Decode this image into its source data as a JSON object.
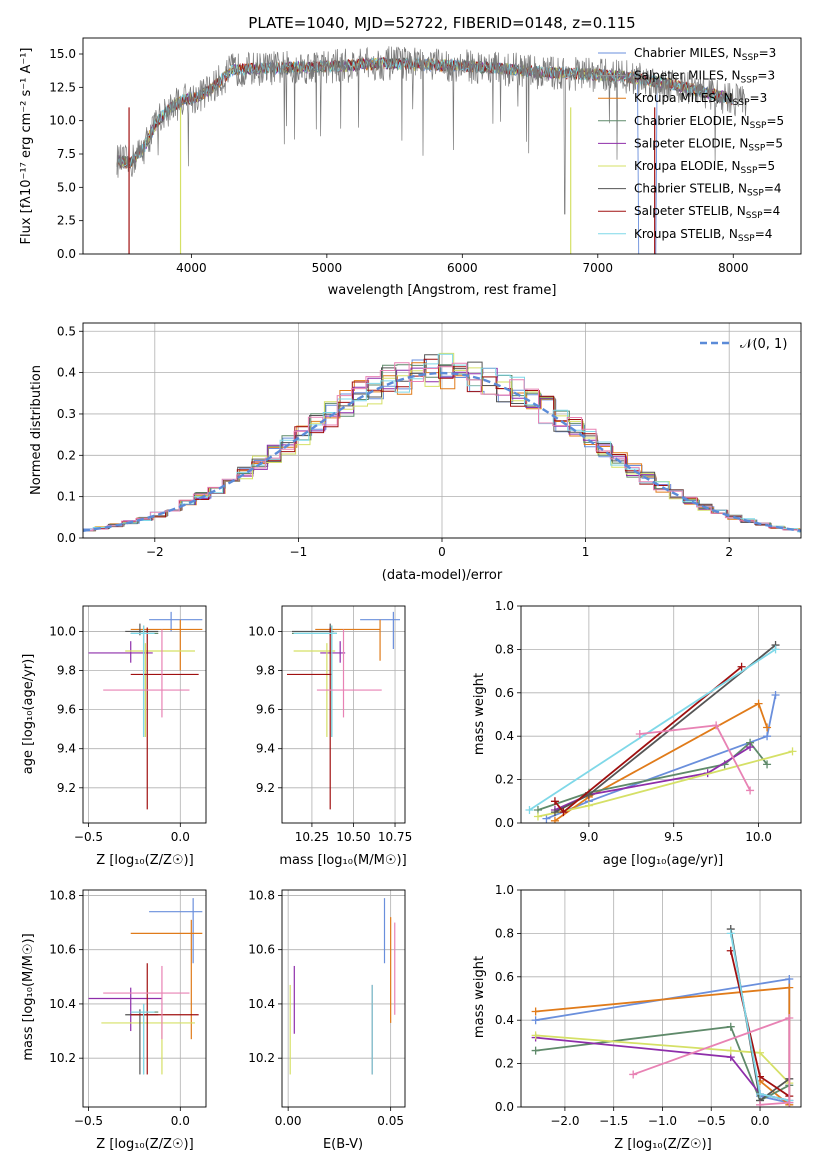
{
  "title": "PLATE=1040, MJD=52722, FIBERID=0148, z=0.115",
  "colors": {
    "Chabrier MILES": "#6a8fdc",
    "Salpeter MILES": "#9a9a9a",
    "Kroupa MILES": "#e07b1a",
    "Chabrier ELODIE": "#5f8a6a",
    "Salpeter ELODIE": "#8e2eaa",
    "Kroupa ELODIE": "#d5e066",
    "Chabrier STELIB": "#555555",
    "Salpeter STELIB": "#a01010",
    "Kroupa STELIB": "#7fd8e8",
    "extra_pink": "#e882b4",
    "normal_curve": "#5b8bd8"
  },
  "chart_data": [
    {
      "type": "line",
      "name": "spectrum",
      "xlabel": "wavelength [Angstrom, rest frame]",
      "ylabel": "Flux [fλ10⁻¹⁷ erg cm⁻² s⁻¹ A⁻¹]",
      "xlim": [
        3200,
        8500
      ],
      "ylim": [
        0,
        16.2
      ],
      "xticks": [
        4000,
        5000,
        6000,
        7000,
        8000
      ],
      "yticks": [
        "0.0",
        "2.5",
        "5.0",
        "7.5",
        "10.0",
        "12.5",
        "15.0"
      ],
      "legend_position": "right",
      "legend": [
        {
          "label": "Chabrier MILES, N",
          "sub": "SSP",
          "suffix": "=3",
          "color": "#6a8fdc"
        },
        {
          "label": "Salpeter MILES, N",
          "sub": "SSP",
          "suffix": "=3",
          "color": "#9a9a9a"
        },
        {
          "label": "Kroupa MILES, N",
          "sub": "SSP",
          "suffix": "=3",
          "color": "#e07b1a"
        },
        {
          "label": "Chabrier ELODIE, N",
          "sub": "SSP",
          "suffix": "=5",
          "color": "#5f8a6a"
        },
        {
          "label": "Salpeter ELODIE, N",
          "sub": "SSP",
          "suffix": "=5",
          "color": "#8e2eaa"
        },
        {
          "label": "Kroupa ELODIE, N",
          "sub": "SSP",
          "suffix": "=5",
          "color": "#d5e066"
        },
        {
          "label": "Chabrier STELIB, N",
          "sub": "SSP",
          "suffix": "=4",
          "color": "#555555"
        },
        {
          "label": "Salpeter STELIB, N",
          "sub": "SSP",
          "suffix": "=4",
          "color": "#a01010"
        },
        {
          "label": "Kroupa STELIB, N",
          "sub": "SSP",
          "suffix": "=4",
          "color": "#7fd8e8"
        }
      ],
      "continuum": [
        [
          3450,
          7.0
        ],
        [
          3550,
          6.8
        ],
        [
          3650,
          8.0
        ],
        [
          3750,
          10.0
        ],
        [
          3850,
          11.0
        ],
        [
          3950,
          11.6
        ],
        [
          4050,
          11.8
        ],
        [
          4150,
          12.4
        ],
        [
          4300,
          13.8
        ],
        [
          4500,
          13.9
        ],
        [
          4800,
          14.0
        ],
        [
          5100,
          14.1
        ],
        [
          5400,
          14.3
        ],
        [
          5700,
          14.2
        ],
        [
          6000,
          14.1
        ],
        [
          6300,
          13.9
        ],
        [
          6600,
          13.6
        ],
        [
          6900,
          13.5
        ],
        [
          7200,
          13.3
        ],
        [
          7500,
          12.8
        ],
        [
          7800,
          12.1
        ],
        [
          8000,
          11.6
        ]
      ]
    },
    {
      "type": "line",
      "name": "residual-histogram",
      "xlabel": "(data-model)/error",
      "ylabel": "Normed distribution",
      "xlim": [
        -2.5,
        2.5
      ],
      "ylim": [
        0,
        0.52
      ],
      "xticks": [
        "−2",
        "−1",
        "0",
        "1",
        "2"
      ],
      "yticks": [
        "0.0",
        "0.1",
        "0.2",
        "0.3",
        "0.4",
        "0.5"
      ],
      "legend_position": "top-right",
      "legend": [
        {
          "label": "𝒩(0, 1)",
          "color": "#5b8bd8",
          "dashed": true
        }
      ]
    },
    {
      "type": "scatter",
      "name": "age-vs-Z",
      "xlabel": "Z [log₁₀(Z/Z☉)]",
      "ylabel": "age  [log₁₀(age/yr)]",
      "xlim": [
        -0.53,
        0.14
      ],
      "ylim": [
        9.02,
        10.13
      ],
      "xticks": [
        "−0.5",
        "0.0"
      ],
      "yticks": [
        "9.2",
        "9.4",
        "9.6",
        "9.8",
        "10.0"
      ],
      "points": [
        {
          "c": "#6a8fdc",
          "x": -0.05,
          "y": 10.06,
          "ex": [
            -0.17,
            0.12
          ],
          "ey": [
            10.0,
            10.1
          ]
        },
        {
          "c": "#e07b1a",
          "x": 0.0,
          "y": 10.01,
          "ex": [
            -0.27,
            0.12
          ],
          "ey": [
            9.8,
            10.06
          ]
        },
        {
          "c": "#5f8a6a",
          "x": -0.2,
          "y": 9.99,
          "ex": [
            -0.27,
            -0.12
          ],
          "ey": [
            9.46,
            10.03
          ]
        },
        {
          "c": "#8e2eaa",
          "x": -0.27,
          "y": 9.89,
          "ex": [
            -0.5,
            -0.15
          ],
          "ey": [
            9.84,
            9.95
          ]
        },
        {
          "c": "#d5e066",
          "x": -0.19,
          "y": 9.9,
          "ex": [
            -0.3,
            0.08
          ],
          "ey": [
            9.46,
            9.94
          ]
        },
        {
          "c": "#555555",
          "x": -0.22,
          "y": 10.0,
          "ex": [
            -0.3,
            -0.12
          ],
          "ey": [
            9.98,
            10.04
          ]
        },
        {
          "c": "#a01010",
          "x": -0.18,
          "y": 9.78,
          "ex": [
            -0.27,
            0.1
          ],
          "ey": [
            9.09,
            10.02
          ]
        },
        {
          "c": "#7fd8e8",
          "x": -0.2,
          "y": 9.99,
          "ex": [
            -0.27,
            -0.14
          ],
          "ey": [
            9.46,
            10.03
          ]
        },
        {
          "c": "#e882b4",
          "x": -0.1,
          "y": 9.7,
          "ex": [
            -0.42,
            0.05
          ],
          "ey": [
            9.56,
            10.01
          ]
        }
      ]
    },
    {
      "type": "scatter",
      "name": "age-vs-mass",
      "xlabel": "mass [log₁₀(M/M☉)]",
      "ylabel": "",
      "xlim": [
        10.07,
        10.81
      ],
      "ylim": [
        9.02,
        10.13
      ],
      "xticks": [
        "10.25",
        "10.50",
        "10.75"
      ],
      "yticks": [
        "9.2",
        "9.4",
        "9.6",
        "9.8",
        "10.0"
      ],
      "points": [
        {
          "c": "#6a8fdc",
          "x": 10.74,
          "y": 10.06,
          "ex": [
            10.54,
            10.78
          ],
          "ey": [
            9.91,
            10.1
          ]
        },
        {
          "c": "#e07b1a",
          "x": 10.66,
          "y": 10.01,
          "ex": [
            10.27,
            10.66
          ],
          "ey": [
            9.85,
            10.06
          ]
        },
        {
          "c": "#5f8a6a",
          "x": 10.37,
          "y": 9.99,
          "ex": [
            10.13,
            10.4
          ],
          "ey": [
            9.46,
            10.03
          ]
        },
        {
          "c": "#8e2eaa",
          "x": 10.42,
          "y": 9.89,
          "ex": [
            10.3,
            10.45
          ],
          "ey": [
            9.84,
            9.95
          ]
        },
        {
          "c": "#d5e066",
          "x": 10.34,
          "y": 9.9,
          "ex": [
            10.14,
            10.39
          ],
          "ey": [
            9.46,
            9.94
          ]
        },
        {
          "c": "#555555",
          "x": 10.36,
          "y": 10.0,
          "ex": [
            10.13,
            10.38
          ],
          "ey": [
            9.98,
            10.04
          ]
        },
        {
          "c": "#a01010",
          "x": 10.36,
          "y": 9.78,
          "ex": [
            10.1,
            10.37
          ],
          "ey": [
            9.09,
            10.02
          ]
        },
        {
          "c": "#7fd8e8",
          "x": 10.37,
          "y": 9.99,
          "ex": [
            10.14,
            10.4
          ],
          "ey": [
            9.46,
            10.03
          ]
        },
        {
          "c": "#e882b4",
          "x": 10.44,
          "y": 9.7,
          "ex": [
            10.28,
            10.67
          ],
          "ey": [
            9.56,
            10.01
          ]
        }
      ]
    },
    {
      "type": "line",
      "name": "weight-vs-age",
      "xlabel": "age  [log₁₀(age/yr)]",
      "ylabel": "mass weight",
      "xlim": [
        8.6,
        10.25
      ],
      "ylim": [
        0,
        1
      ],
      "xticks": [
        "9.0",
        "9.5",
        "10.0"
      ],
      "yticks": [
        "0.0",
        "0.2",
        "0.4",
        "0.6",
        "0.8",
        "1.0"
      ],
      "series": [
        {
          "c": "#6a8fdc",
          "pts": [
            [
              8.75,
              0.02
            ],
            [
              9.0,
              0.1
            ],
            [
              10.05,
              0.4
            ],
            [
              10.1,
              0.59
            ]
          ]
        },
        {
          "c": "#e07b1a",
          "pts": [
            [
              8.8,
              0.01
            ],
            [
              9.0,
              0.12
            ],
            [
              10.0,
              0.55
            ],
            [
              10.05,
              0.44
            ]
          ]
        },
        {
          "c": "#5f8a6a",
          "pts": [
            [
              8.7,
              0.06
            ],
            [
              9.0,
              0.14
            ],
            [
              9.8,
              0.27
            ],
            [
              9.95,
              0.37
            ],
            [
              10.05,
              0.27
            ]
          ]
        },
        {
          "c": "#8e2eaa",
          "pts": [
            [
              8.8,
              0.06
            ],
            [
              9.0,
              0.13
            ],
            [
              9.7,
              0.23
            ],
            [
              9.95,
              0.35
            ]
          ]
        },
        {
          "c": "#d5e066",
          "pts": [
            [
              8.7,
              0.03
            ],
            [
              9.0,
              0.08
            ],
            [
              10.2,
              0.33
            ]
          ]
        },
        {
          "c": "#555555",
          "pts": [
            [
              8.8,
              0.05
            ],
            [
              9.0,
              0.13
            ],
            [
              10.1,
              0.82
            ]
          ]
        },
        {
          "c": "#a01010",
          "pts": [
            [
              8.8,
              0.1
            ],
            [
              8.85,
              0.05
            ],
            [
              9.9,
              0.72
            ]
          ]
        },
        {
          "c": "#7fd8e8",
          "pts": [
            [
              8.65,
              0.06
            ],
            [
              10.1,
              0.8
            ]
          ]
        },
        {
          "c": "#e882b4",
          "pts": [
            [
              9.3,
              0.41
            ],
            [
              9.75,
              0.45
            ],
            [
              9.95,
              0.15
            ]
          ]
        }
      ]
    },
    {
      "type": "scatter",
      "name": "mass-vs-Z",
      "xlabel": "Z [log₁₀(Z/Z☉)]",
      "ylabel": "mass [log₁₀(M/M☉)]",
      "xlim": [
        -0.53,
        0.14
      ],
      "ylim": [
        10.02,
        10.82
      ],
      "xticks": [
        "−0.5",
        "0.0"
      ],
      "yticks": [
        "10.2",
        "10.4",
        "10.6",
        "10.8"
      ],
      "points": [
        {
          "c": "#6a8fdc",
          "x": 0.07,
          "y": 10.74,
          "ex": [
            -0.17,
            0.12
          ],
          "ey": [
            10.55,
            10.79
          ]
        },
        {
          "c": "#e07b1a",
          "x": 0.06,
          "y": 10.66,
          "ex": [
            -0.27,
            0.12
          ],
          "ey": [
            10.27,
            10.71
          ]
        },
        {
          "c": "#5f8a6a",
          "x": -0.2,
          "y": 10.37,
          "ex": [
            -0.27,
            -0.12
          ],
          "ey": [
            10.14,
            10.4
          ]
        },
        {
          "c": "#8e2eaa",
          "x": -0.27,
          "y": 10.42,
          "ex": [
            -0.5,
            -0.1
          ],
          "ey": [
            10.3,
            10.46
          ]
        },
        {
          "c": "#d5e066",
          "x": -0.1,
          "y": 10.33,
          "ex": [
            -0.43,
            0.08
          ],
          "ey": [
            10.14,
            10.38
          ]
        },
        {
          "c": "#555555",
          "x": -0.22,
          "y": 10.36,
          "ex": [
            -0.3,
            -0.12
          ],
          "ey": [
            10.14,
            10.38
          ]
        },
        {
          "c": "#a01010",
          "x": -0.18,
          "y": 10.36,
          "ex": [
            -0.27,
            0.1
          ],
          "ey": [
            10.14,
            10.55
          ]
        },
        {
          "c": "#7fd8e8",
          "x": -0.2,
          "y": 10.37,
          "ex": [
            -0.27,
            -0.14
          ],
          "ey": [
            10.14,
            10.4
          ]
        },
        {
          "c": "#e882b4",
          "x": -0.1,
          "y": 10.44,
          "ex": [
            -0.42,
            0.05
          ],
          "ey": [
            10.27,
            10.54
          ]
        }
      ]
    },
    {
      "type": "scatter",
      "name": "mass-vs-ebv",
      "xlabel": "E(B-V)",
      "ylabel": "",
      "xlim": [
        -0.003,
        0.057
      ],
      "ylim": [
        10.02,
        10.82
      ],
      "xticks": [
        "0.00",
        "0.05"
      ],
      "yticks": [
        "10.2",
        "10.4",
        "10.6",
        "10.8"
      ],
      "points": [
        {
          "c": "#6a8fdc",
          "x": 0.047,
          "y": 10.74,
          "ey": [
            10.55,
            10.79
          ]
        },
        {
          "c": "#e07b1a",
          "x": 0.05,
          "y": 10.6,
          "ey": [
            10.33,
            10.72
          ]
        },
        {
          "c": "#e882b4",
          "x": 0.052,
          "y": 10.5,
          "ey": [
            10.36,
            10.7
          ]
        },
        {
          "c": "#a01010",
          "x": 0.041,
          "y": 10.36,
          "ey": [
            10.14,
            10.47
          ]
        },
        {
          "c": "#7fd8e8",
          "x": 0.041,
          "y": 10.3,
          "ey": [
            10.14,
            10.47
          ]
        },
        {
          "c": "#8e2eaa",
          "x": 0.003,
          "y": 10.4,
          "ey": [
            10.29,
            10.54
          ]
        },
        {
          "c": "#d5e066",
          "x": 0.001,
          "y": 10.3,
          "ey": [
            10.14,
            10.47
          ]
        }
      ]
    },
    {
      "type": "line",
      "name": "weight-vs-Z",
      "xlabel": "Z [log₁₀(Z/Z☉)]",
      "ylabel": "mass weight",
      "xlim": [
        -2.45,
        0.42
      ],
      "ylim": [
        0,
        1
      ],
      "xticks": [
        "−2.0",
        "−1.5",
        "−1.0",
        "−0.5",
        "0.0"
      ],
      "yticks": [
        "0.0",
        "0.2",
        "0.4",
        "0.6",
        "0.8",
        "1.0"
      ],
      "series": [
        {
          "c": "#6a8fdc",
          "pts": [
            [
              -2.3,
              0.4
            ],
            [
              0.3,
              0.59
            ],
            [
              0.3,
              0.02
            ],
            [
              0.0,
              0.05
            ]
          ]
        },
        {
          "c": "#e07b1a",
          "pts": [
            [
              -2.3,
              0.44
            ],
            [
              0.3,
              0.55
            ],
            [
              0.3,
              0.01
            ],
            [
              0.0,
              0.12
            ]
          ]
        },
        {
          "c": "#5f8a6a",
          "pts": [
            [
              -2.3,
              0.26
            ],
            [
              -0.3,
              0.37
            ],
            [
              0.0,
              0.03
            ],
            [
              0.3,
              0.1
            ]
          ]
        },
        {
          "c": "#8e2eaa",
          "pts": [
            [
              -2.3,
              0.32
            ],
            [
              -0.3,
              0.23
            ],
            [
              0.0,
              0.06
            ],
            [
              0.3,
              0.03
            ]
          ]
        },
        {
          "c": "#d5e066",
          "pts": [
            [
              -2.3,
              0.33
            ],
            [
              -0.3,
              0.26
            ],
            [
              0.0,
              0.25
            ],
            [
              0.3,
              0.11
            ]
          ]
        },
        {
          "c": "#555555",
          "pts": [
            [
              -0.3,
              0.82
            ],
            [
              0.0,
              0.03
            ],
            [
              0.3,
              0.13
            ]
          ]
        },
        {
          "c": "#a01010",
          "pts": [
            [
              -0.3,
              0.72
            ],
            [
              0.0,
              0.14
            ],
            [
              0.3,
              0.05
            ]
          ]
        },
        {
          "c": "#7fd8e8",
          "pts": [
            [
              -0.3,
              0.8
            ],
            [
              0.0,
              0.06
            ],
            [
              0.3,
              0.03
            ]
          ]
        },
        {
          "c": "#e882b4",
          "pts": [
            [
              -1.3,
              0.15
            ],
            [
              0.3,
              0.41
            ],
            [
              0.3,
              0.02
            ],
            [
              0.0,
              0.01
            ]
          ]
        }
      ]
    }
  ]
}
